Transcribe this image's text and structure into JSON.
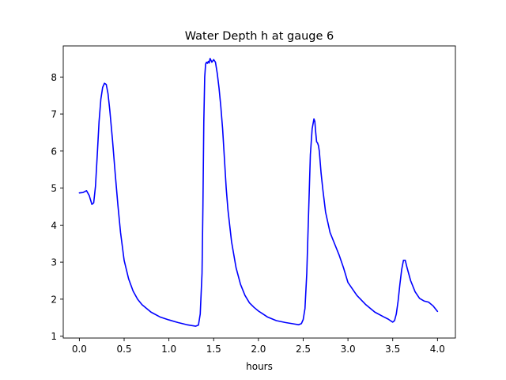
{
  "chart_data": {
    "type": "line",
    "title": "Water Depth h at gauge 6",
    "xlabel": "hours",
    "ylabel": "",
    "xlim": [
      -0.18,
      4.2
    ],
    "ylim": [
      0.95,
      8.84
    ],
    "xticks": [
      0.0,
      0.5,
      1.0,
      1.5,
      2.0,
      2.5,
      3.0,
      3.5,
      4.0
    ],
    "xtick_labels": [
      "0.0",
      "0.5",
      "1.0",
      "1.5",
      "2.0",
      "2.5",
      "3.0",
      "3.5",
      "4.0"
    ],
    "yticks": [
      1,
      2,
      3,
      4,
      5,
      6,
      7,
      8
    ],
    "ytick_labels": [
      "1",
      "2",
      "3",
      "4",
      "5",
      "6",
      "7",
      "8"
    ],
    "grid": false,
    "series": [
      {
        "color": "#0000ff",
        "x": [
          0.0,
          0.04,
          0.08,
          0.11,
          0.14,
          0.16,
          0.18,
          0.2,
          0.22,
          0.24,
          0.26,
          0.28,
          0.3,
          0.32,
          0.34,
          0.37,
          0.4,
          0.43,
          0.46,
          0.5,
          0.55,
          0.6,
          0.65,
          0.7,
          0.8,
          0.9,
          1.0,
          1.1,
          1.2,
          1.3,
          1.33,
          1.35,
          1.37,
          1.38,
          1.39,
          1.4,
          1.41,
          1.42,
          1.43,
          1.44,
          1.45,
          1.46,
          1.47,
          1.48,
          1.5,
          1.52,
          1.54,
          1.56,
          1.58,
          1.6,
          1.62,
          1.64,
          1.66,
          1.7,
          1.75,
          1.8,
          1.85,
          1.9,
          1.95,
          2.0,
          2.05,
          2.1,
          2.2,
          2.3,
          2.4,
          2.45,
          2.48,
          2.5,
          2.52,
          2.54,
          2.56,
          2.58,
          2.6,
          2.62,
          2.63,
          2.64,
          2.65,
          2.66,
          2.67,
          2.68,
          2.7,
          2.72,
          2.75,
          2.8,
          2.85,
          2.9,
          2.95,
          3.0,
          3.1,
          3.2,
          3.3,
          3.4,
          3.45,
          3.48,
          3.5,
          3.52,
          3.54,
          3.56,
          3.58,
          3.6,
          3.62,
          3.64,
          3.66,
          3.7,
          3.75,
          3.8,
          3.85,
          3.9,
          3.95,
          4.0
        ],
        "y": [
          4.87,
          4.88,
          4.93,
          4.8,
          4.56,
          4.6,
          5.05,
          5.9,
          6.8,
          7.4,
          7.72,
          7.83,
          7.8,
          7.55,
          7.1,
          6.3,
          5.4,
          4.55,
          3.8,
          3.05,
          2.55,
          2.22,
          2.0,
          1.85,
          1.65,
          1.52,
          1.44,
          1.37,
          1.31,
          1.27,
          1.3,
          1.6,
          2.7,
          4.5,
          6.8,
          8.0,
          8.35,
          8.4,
          8.37,
          8.42,
          8.38,
          8.5,
          8.45,
          8.4,
          8.47,
          8.4,
          8.1,
          7.7,
          7.2,
          6.6,
          5.8,
          5.0,
          4.4,
          3.55,
          2.85,
          2.4,
          2.1,
          1.9,
          1.78,
          1.68,
          1.6,
          1.52,
          1.42,
          1.37,
          1.33,
          1.31,
          1.34,
          1.45,
          1.75,
          2.7,
          4.3,
          5.9,
          6.6,
          6.87,
          6.8,
          6.5,
          6.25,
          6.22,
          6.15,
          6.0,
          5.4,
          4.95,
          4.35,
          3.8,
          3.5,
          3.2,
          2.85,
          2.45,
          2.1,
          1.85,
          1.65,
          1.52,
          1.46,
          1.41,
          1.38,
          1.42,
          1.6,
          1.95,
          2.4,
          2.8,
          3.05,
          3.05,
          2.85,
          2.5,
          2.2,
          2.02,
          1.95,
          1.92,
          1.82,
          1.67
        ]
      }
    ]
  }
}
